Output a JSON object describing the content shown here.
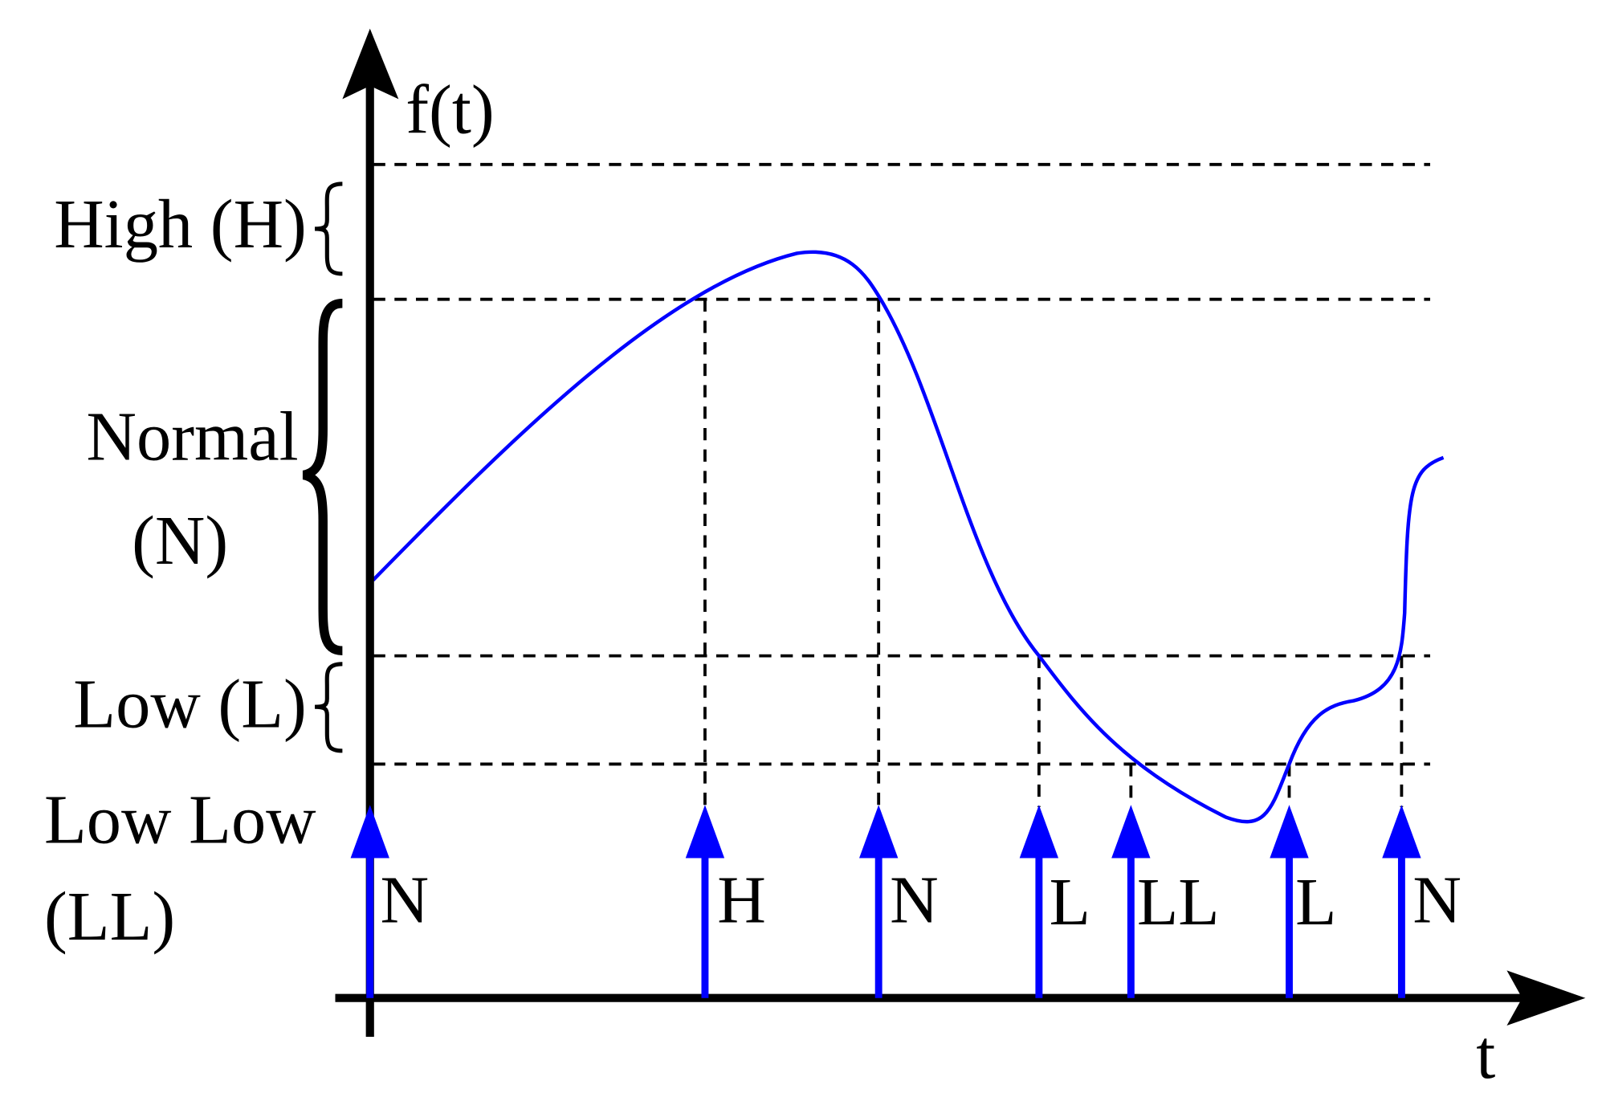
{
  "axes": {
    "y_label": "f(t)",
    "x_label": "t"
  },
  "zones": [
    {
      "label_lines": [
        "High (H)"
      ]
    },
    {
      "label_lines": [
        "Normal",
        "(N)"
      ]
    },
    {
      "label_lines": [
        "Low (L)"
      ]
    },
    {
      "label_lines": [
        "Low Low",
        "(LL)"
      ]
    }
  ],
  "events": [
    {
      "label": "N"
    },
    {
      "label": "H"
    },
    {
      "label": "N"
    },
    {
      "label": "L"
    },
    {
      "label": "LL"
    },
    {
      "label": "L"
    },
    {
      "label": "N"
    }
  ]
}
